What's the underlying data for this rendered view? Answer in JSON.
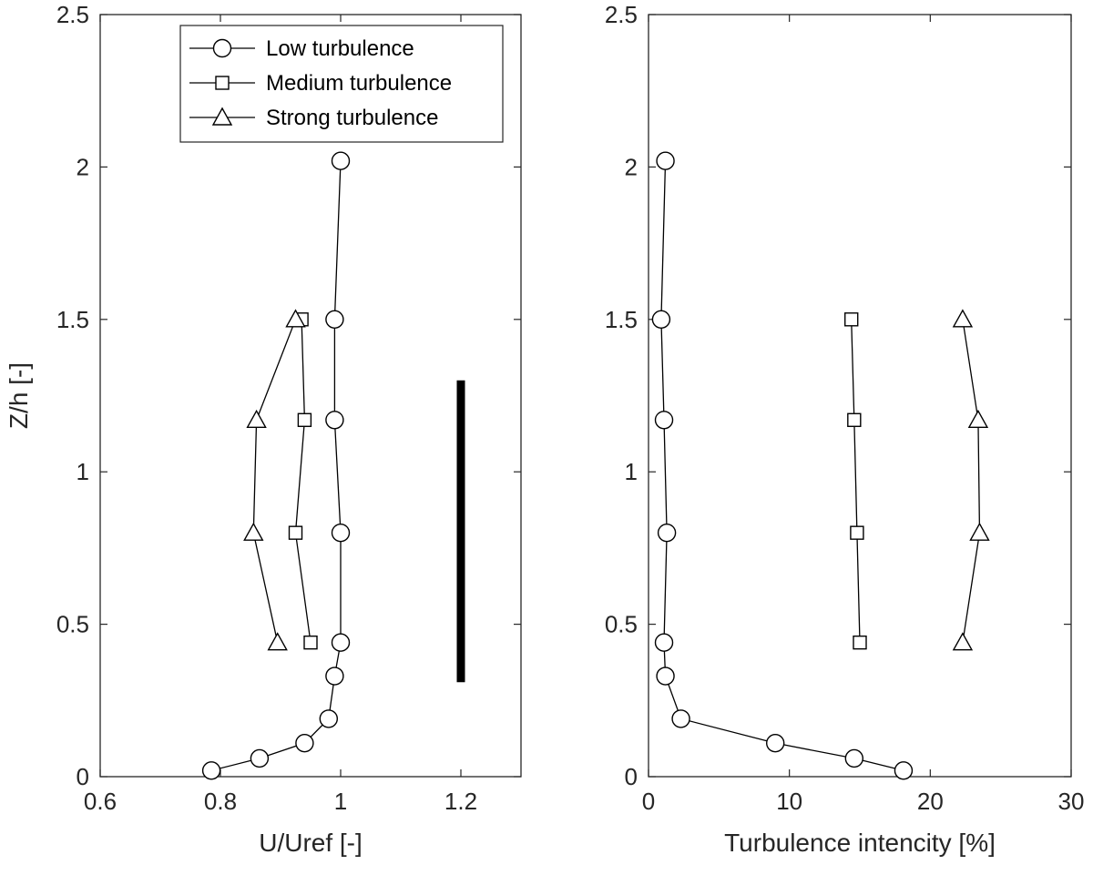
{
  "chart_data": [
    {
      "type": "line",
      "xlabel": "U/Uref [-]",
      "ylabel": "Z/h [-]",
      "xlim": [
        0.6,
        1.3
      ],
      "ylim": [
        0,
        2.5
      ],
      "xticks": [
        "0.6",
        "0.8",
        "1",
        "1.2"
      ],
      "xtick_values": [
        0.6,
        0.8,
        1.0,
        1.2
      ],
      "yticks": [
        "0",
        "0.5",
        "1",
        "1.5",
        "2",
        "2.5"
      ],
      "ytick_values": [
        0,
        0.5,
        1.0,
        1.5,
        2.0,
        2.5
      ],
      "grid": false,
      "legend": {
        "placement": "top",
        "entries": [
          "Low turbulence",
          "Medium turbulence",
          "Strong turbulence"
        ]
      },
      "series": [
        {
          "name": "Low turbulence",
          "marker": "circle",
          "x": [
            0.785,
            0.865,
            0.94,
            0.98,
            0.99,
            1.0,
            1.0,
            0.99,
            0.99,
            1.0
          ],
          "y": [
            0.02,
            0.06,
            0.11,
            0.19,
            0.33,
            0.44,
            0.8,
            1.17,
            1.5,
            2.02
          ]
        },
        {
          "name": "Medium turbulence",
          "marker": "square",
          "x": [
            0.95,
            0.925,
            0.94,
            0.935
          ],
          "y": [
            0.44,
            0.8,
            1.17,
            1.5
          ]
        },
        {
          "name": "Strong turbulence",
          "marker": "triangle",
          "x": [
            0.895,
            0.855,
            0.86,
            0.925
          ],
          "y": [
            0.44,
            0.8,
            1.17,
            1.5
          ]
        }
      ],
      "annotations": [
        {
          "type": "vertical-bar",
          "x": 1.2,
          "y_from": 0.31,
          "y_to": 1.3,
          "color": "#000000"
        }
      ]
    },
    {
      "type": "line",
      "xlabel": "Turbulence intencity [%]",
      "ylabel": "",
      "xlim": [
        0,
        30
      ],
      "ylim": [
        0,
        2.5
      ],
      "xticks": [
        "0",
        "10",
        "20",
        "30"
      ],
      "xtick_values": [
        0,
        10,
        20,
        30
      ],
      "yticks": [
        "0",
        "0.5",
        "1",
        "1.5",
        "2",
        "2.5"
      ],
      "ytick_values": [
        0,
        0.5,
        1.0,
        1.5,
        2.0,
        2.5
      ],
      "grid": false,
      "series": [
        {
          "name": "Low turbulence",
          "marker": "circle",
          "x": [
            18.1,
            14.6,
            9.0,
            2.3,
            1.2,
            1.1,
            1.3,
            1.1,
            0.9,
            1.2
          ],
          "y": [
            0.02,
            0.06,
            0.11,
            0.19,
            0.33,
            0.44,
            0.8,
            1.17,
            1.5,
            2.02
          ]
        },
        {
          "name": "Medium turbulence",
          "marker": "square",
          "x": [
            15.0,
            14.8,
            14.6,
            14.4
          ],
          "y": [
            0.44,
            0.8,
            1.17,
            1.5
          ]
        },
        {
          "name": "Strong turbulence",
          "marker": "triangle",
          "x": [
            22.3,
            23.5,
            23.4,
            22.3
          ],
          "y": [
            0.44,
            0.8,
            1.17,
            1.5
          ]
        }
      ]
    }
  ]
}
